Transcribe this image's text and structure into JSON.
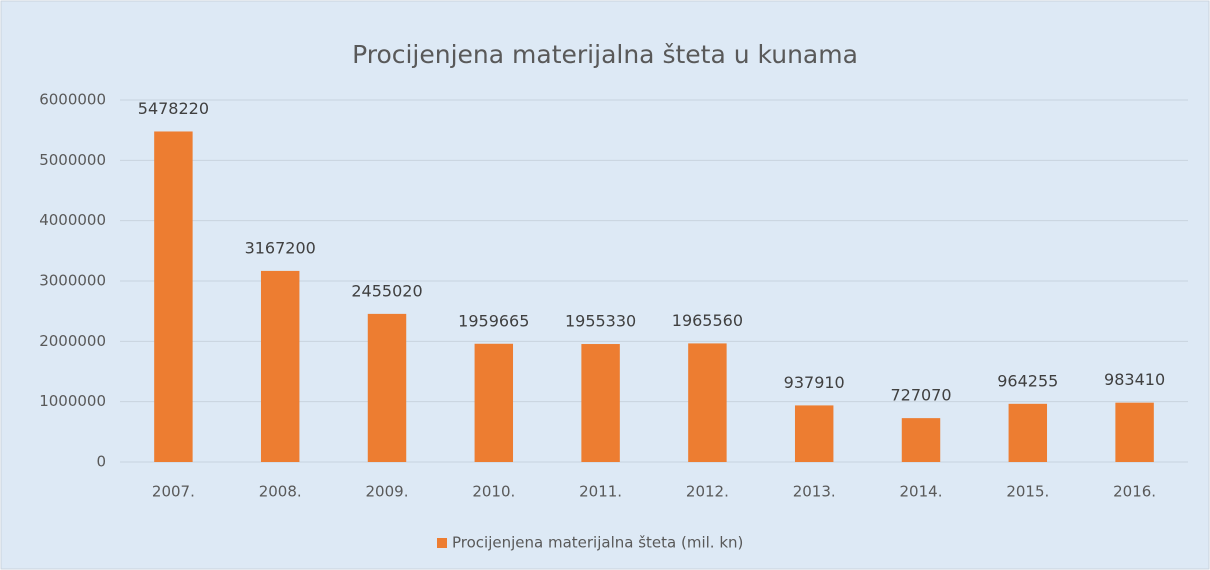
{
  "chart_data": {
    "type": "bar",
    "title": "Procijenjena materijalna šteta u kunama",
    "categories": [
      "2007.",
      "2008.",
      "2009.",
      "2010.",
      "2011.",
      "2012.",
      "2013.",
      "2014.",
      "2015.",
      "2016."
    ],
    "series": [
      {
        "name": "Procijenjena materijalna šteta (mil. kn)",
        "color": "#ed7d31",
        "values": [
          5478220,
          3167200,
          2455020,
          1959665,
          1955330,
          1965560,
          937910,
          727070,
          964255,
          983410
        ]
      }
    ],
    "ylim": [
      0,
      6000000
    ],
    "yticks": [
      0,
      1000000,
      2000000,
      3000000,
      4000000,
      5000000,
      6000000
    ],
    "grid": true,
    "legend": "bottom"
  }
}
